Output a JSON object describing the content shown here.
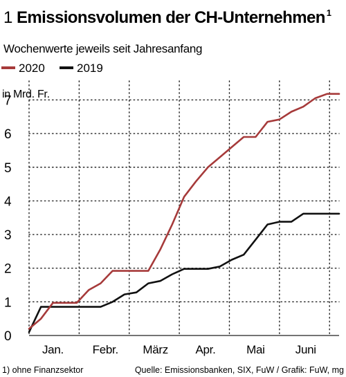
{
  "header": {
    "number": "1",
    "title": "Emissionsvolumen der CH-Unternehmen",
    "footnote_mark": "1",
    "subtitle": "Wochenwerte jeweils seit Jahresanfang"
  },
  "chart_data": {
    "type": "line",
    "title": "Emissionsvolumen der CH-Unternehmen",
    "subtitle": "Wochenwerte jeweils seit Jahresanfang",
    "ylabel": "in Mrd. Fr.",
    "xlabel": "",
    "ylim": [
      0,
      7.4
    ],
    "yticks": [
      0,
      1,
      2,
      3,
      4,
      5,
      6,
      7
    ],
    "x_range_weeks": [
      0,
      26
    ],
    "month_labels": [
      {
        "label": "Jan.",
        "center_week": 2.0
      },
      {
        "label": "Febr.",
        "center_week": 6.4
      },
      {
        "label": "März",
        "center_week": 10.6
      },
      {
        "label": "Apr.",
        "center_week": 14.8
      },
      {
        "label": "Mai",
        "center_week": 19.0
      },
      {
        "label": "Juni",
        "center_week": 23.2
      }
    ],
    "month_boundaries_weeks": [
      4.2,
      8.4,
      12.6,
      16.8,
      21.0,
      25.2
    ],
    "grid": true,
    "legend": "top-left",
    "series": [
      {
        "name": "2020",
        "color": "#a63a3a",
        "x": [
          0,
          1,
          2,
          3,
          4,
          5,
          6,
          7,
          8,
          9,
          10,
          11,
          12,
          13,
          14,
          15,
          16,
          17,
          18,
          19,
          20,
          21,
          22,
          23,
          24,
          25,
          26
        ],
        "values": [
          0.2,
          0.5,
          0.97,
          0.97,
          0.97,
          1.35,
          1.55,
          1.92,
          1.92,
          1.92,
          1.92,
          2.55,
          3.3,
          4.12,
          4.58,
          5.0,
          5.3,
          5.6,
          5.9,
          5.9,
          6.35,
          6.42,
          6.65,
          6.8,
          7.05,
          7.18,
          7.18
        ]
      },
      {
        "name": "2019",
        "color": "#111111",
        "x": [
          0,
          1,
          2,
          3,
          4,
          5,
          6,
          7,
          8,
          9,
          10,
          11,
          12,
          13,
          14,
          15,
          16,
          17,
          18,
          19,
          20,
          21,
          22,
          23,
          24,
          25,
          26
        ],
        "values": [
          0.1,
          0.85,
          0.85,
          0.85,
          0.85,
          0.85,
          0.85,
          1.0,
          1.22,
          1.28,
          1.55,
          1.62,
          1.82,
          1.98,
          1.98,
          1.98,
          2.05,
          2.25,
          2.4,
          2.85,
          3.3,
          3.38,
          3.38,
          3.62,
          3.62,
          3.62,
          3.62
        ]
      }
    ]
  },
  "footer": {
    "left": "1) ohne Finanzsektor",
    "right": "Quelle: Emissionsbanken, SIX, FuW / Grafik: FuW, mg"
  }
}
